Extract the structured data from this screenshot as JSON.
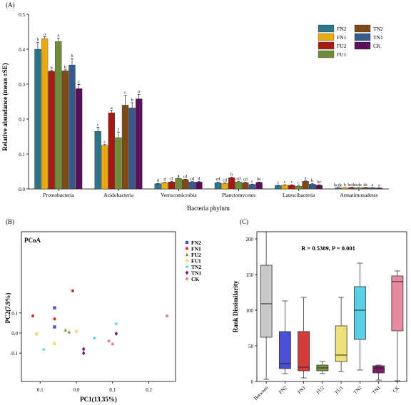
{
  "panels": {
    "a": "(A)",
    "b": "(B)",
    "c": "(C)"
  },
  "chart_data": [
    {
      "type": "bar",
      "xlabel": "Bacteria phylum",
      "ylabel": "Relative abundance (mean ±SE)",
      "ylim": [
        0,
        0.5
      ],
      "yticks": [
        "0.0",
        "0.1",
        "0.2",
        "0.3",
        "0.4",
        "0.5"
      ],
      "categories": [
        "Proteobacteria",
        "Acidobacteria",
        "Verrucomicrobia",
        "Planctomycetes",
        "Latescibacteria",
        "Armatimonadetes"
      ],
      "legend_position": "top-right",
      "series": [
        {
          "name": "FN2",
          "color": "#2e7387",
          "values": [
            0.4,
            0.165,
            0.015,
            0.018,
            0.01,
            0.003
          ],
          "errors": [
            0.02,
            0.012,
            0.001,
            0.002,
            0.001,
            0.0005
          ],
          "letters": [
            "b",
            "c",
            "d",
            "cd",
            "c",
            "bcde"
          ]
        },
        {
          "name": "FN1",
          "color": "#e8a913",
          "values": [
            0.43,
            0.125,
            0.018,
            0.016,
            0.011,
            0.0035
          ],
          "errors": [
            0.006,
            0.002,
            0.001,
            0.001,
            0.001,
            0.0005
          ],
          "letters": [
            "a",
            "c",
            "d",
            "cd",
            "c",
            "b"
          ]
        },
        {
          "name": "FU2",
          "color": "#a31b13",
          "values": [
            0.337,
            0.218,
            0.02,
            0.032,
            0.011,
            0.004
          ],
          "errors": [
            0.002,
            0.007,
            0.001,
            0.002,
            0.001,
            0.0005
          ],
          "letters": [
            "b",
            "a",
            "d",
            "b",
            "c",
            "bcde"
          ]
        },
        {
          "name": "FU1",
          "color": "#6f8c3a",
          "values": [
            0.422,
            0.147,
            0.03,
            0.02,
            0.008,
            0.0035
          ],
          "errors": [
            0.01,
            0.016,
            0.001,
            0.001,
            0.001,
            0.0005
          ],
          "letters": [
            "a",
            "c",
            "a",
            "cd",
            "c",
            "cde"
          ]
        },
        {
          "name": "TN2",
          "color": "#7d4a18",
          "values": [
            0.338,
            0.24,
            0.027,
            0.018,
            0.022,
            0.004
          ],
          "errors": [
            0.003,
            0.028,
            0.001,
            0.001,
            0.001,
            0.0005
          ],
          "letters": [
            "b",
            "c",
            "cd",
            "cd",
            "a",
            "de"
          ]
        },
        {
          "name": "TN1",
          "color": "#3a5a8c",
          "values": [
            0.355,
            0.232,
            0.02,
            0.013,
            0.014,
            0.0035
          ],
          "errors": [
            0.018,
            0.015,
            0.001,
            0.001,
            0.002,
            0.0005
          ],
          "letters": [
            "b",
            "b",
            "cd",
            "c",
            "b",
            "e"
          ]
        },
        {
          "name": "CK",
          "color": "#5a1059",
          "values": [
            0.287,
            0.258,
            0.02,
            0.019,
            0.011,
            0.0025
          ],
          "errors": [
            0.012,
            0.013,
            0.001,
            0.001,
            0.001,
            0.0005
          ],
          "letters": [
            "c",
            "a",
            "d",
            "bc",
            "bc",
            "a"
          ]
        }
      ]
    },
    {
      "type": "scatter",
      "title": "PCoA",
      "xlabel": "PC1(13.35%)",
      "ylabel": "PC2(7.9%)",
      "xticks": [
        "0.1",
        "0.0",
        "0.1",
        "0.2"
      ],
      "yticks": [
        "0.1",
        "0.0",
        "-0.1"
      ],
      "legend_position": "top-right",
      "series": [
        {
          "name": "FN2",
          "color": "#4a4fd4",
          "marker": "square",
          "points": [
            [
              -0.06,
              0.125
            ],
            [
              -0.06,
              0.03
            ]
          ]
        },
        {
          "name": "FN1",
          "color": "#d43b3b",
          "marker": "circle",
          "points": [
            [
              -0.01,
              0.21
            ],
            [
              -0.06,
              0.07
            ],
            [
              -0.12,
              0.085
            ]
          ]
        },
        {
          "name": "FU2",
          "color": "#8a8a3a",
          "marker": "triangle",
          "points": [
            [
              -0.03,
              0.015
            ],
            [
              -0.02,
              0.005
            ]
          ]
        },
        {
          "name": "FU1",
          "color": "#f0e07a",
          "marker": "square",
          "points": [
            [
              -0.11,
              -0.005
            ],
            [
              -0.06,
              -0.052
            ],
            [
              0.0,
              0.007
            ]
          ]
        },
        {
          "name": "TN2",
          "color": "#5bcfe6",
          "marker": "star",
          "points": [
            [
              -0.09,
              -0.082
            ],
            [
              0.05,
              -0.025
            ],
            [
              0.11,
              0.045
            ]
          ]
        },
        {
          "name": "TN1",
          "color": "#6a1570",
          "marker": "diamond",
          "points": [
            [
              0.02,
              -0.08
            ],
            [
              0.02,
              -0.1
            ],
            [
              0.11,
              -0.003
            ]
          ]
        },
        {
          "name": "CK",
          "color": "#e88aa0",
          "marker": "circle",
          "points": [
            [
              0.09,
              -0.04
            ],
            [
              0.1,
              -0.055
            ],
            [
              0.25,
              0.085
            ]
          ]
        }
      ]
    },
    {
      "type": "box",
      "annotation": "R = 0.5389, P = 0.001",
      "ylabel": "Rank Dissimilarity",
      "ylim": [
        0,
        210
      ],
      "yticks": [
        "0",
        "50",
        "100",
        "150",
        "200"
      ],
      "categories": [
        "Between",
        "FN2",
        "FN1",
        "FU2",
        "FU1",
        "TN2",
        "TN1",
        "CK"
      ],
      "colors": [
        "#c8c8c8",
        "#4a4fd4",
        "#d43b3b",
        "#7a9a3a",
        "#f0e07a",
        "#5bcfe6",
        "#7a1a6a",
        "#e88aa0"
      ],
      "boxes": [
        {
          "min": 3,
          "q1": 62,
          "median": 109,
          "q3": 163,
          "max": 210
        },
        {
          "min": 11,
          "q1": 18,
          "median": 25,
          "q3": 70,
          "max": 113
        },
        {
          "min": 5,
          "q1": 15,
          "median": 20,
          "q3": 70,
          "max": 118
        },
        {
          "min": 11,
          "q1": 15,
          "median": 19,
          "q3": 23,
          "max": 28
        },
        {
          "min": 14,
          "q1": 28,
          "median": 37,
          "q3": 78,
          "max": 118
        },
        {
          "min": 16,
          "q1": 59,
          "median": 100,
          "q3": 133,
          "max": 166
        },
        {
          "min": 2,
          "q1": 12,
          "median": 19,
          "q3": 22,
          "max": 23
        },
        {
          "min": 1,
          "q1": 71,
          "median": 140,
          "q3": 148,
          "max": 155
        }
      ]
    }
  ]
}
